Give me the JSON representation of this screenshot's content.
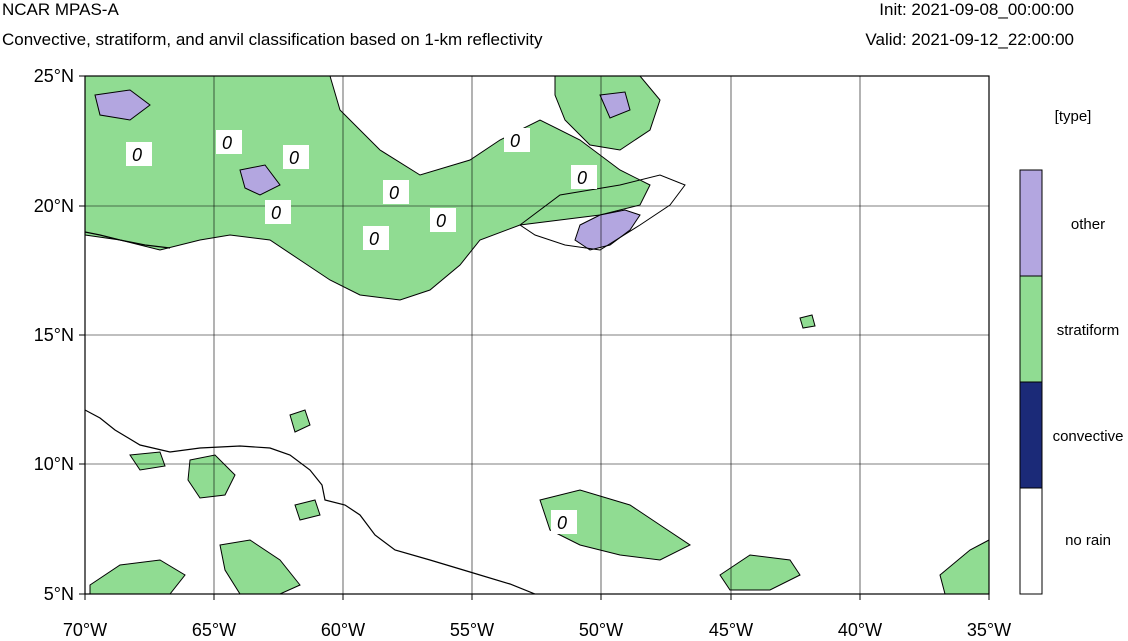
{
  "header": {
    "title": "NCAR MPAS-A",
    "subtitle": "Convective, stratiform, and anvil classification based on 1-km reflectivity",
    "init": "Init: 2021-09-08_00:00:00",
    "valid": "Valid: 2021-09-12_22:00:00"
  },
  "map": {
    "lon_range": [
      -70,
      -35
    ],
    "lat_range": [
      5,
      25
    ],
    "x_ticks": [
      "70°W",
      "65°W",
      "60°W",
      "55°W",
      "50°W",
      "45°W",
      "40°W",
      "35°W"
    ],
    "y_ticks": [
      "25°N",
      "20°N",
      "15°N",
      "10°N",
      "5°N"
    ],
    "contour_label": "0"
  },
  "legend": {
    "title": "[type]",
    "items": [
      {
        "label": "other",
        "color": "#b3a6e0"
      },
      {
        "label": "stratiform",
        "color": "#90dc92"
      },
      {
        "label": "convective",
        "color": "#1b2a78"
      },
      {
        "label": "no rain",
        "color": "#ffffff"
      }
    ]
  }
}
